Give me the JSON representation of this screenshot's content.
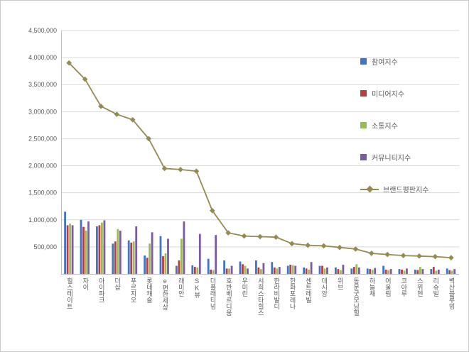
{
  "chart_data": {
    "type": "bar+line",
    "title": "",
    "legend_position": "right-overlay",
    "grid": true,
    "ylim": [
      0,
      4500000
    ],
    "y_ticks": [
      500000,
      1000000,
      1500000,
      2000000,
      2500000,
      3000000,
      3500000,
      4000000,
      4500000
    ],
    "y_tick_labels": [
      "500,000",
      "1,000,000",
      "1,500,000",
      "2,000,000",
      "2,500,000",
      "3,000,000",
      "3,500,000",
      "4,000,000",
      "4,500,000"
    ],
    "categories": [
      "힐스테이트",
      "자이",
      "아이파크",
      "더샵",
      "푸르지오",
      "롯데캐슬",
      "e편한세상",
      "래미안",
      "SK뷰",
      "더플래티넘",
      "호반베르디움",
      "우미린",
      "서희스타힐스",
      "한라비발디",
      "한화포레나",
      "센트레빌",
      "데시앙",
      "위브",
      "동문굿모닝힐",
      "하늘채",
      "어울림",
      "코아루",
      "스위첸",
      "리슈빌",
      "벽산블루밍"
    ],
    "series": [
      {
        "name": "참여지수",
        "color": "#4472C4",
        "values": [
          1150000,
          1000000,
          880000,
          560000,
          620000,
          340000,
          700000,
          150000,
          160000,
          280000,
          250000,
          230000,
          250000,
          220000,
          150000,
          120000,
          150000,
          120000,
          100000,
          100000,
          150000,
          90000,
          80000,
          90000,
          100000
        ]
      },
      {
        "name": "미디어지수",
        "color": "#BC3C39",
        "values": [
          900000,
          870000,
          900000,
          600000,
          580000,
          300000,
          330000,
          250000,
          130000,
          80000,
          100000,
          180000,
          120000,
          120000,
          170000,
          100000,
          150000,
          90000,
          130000,
          90000,
          80000,
          80000,
          70000,
          130000,
          70000
        ]
      },
      {
        "name": "소통지수",
        "color": "#9BBB59",
        "values": [
          930000,
          800000,
          950000,
          830000,
          600000,
          560000,
          380000,
          650000,
          120000,
          70000,
          100000,
          150000,
          90000,
          100000,
          160000,
          80000,
          100000,
          70000,
          180000,
          80000,
          70000,
          60000,
          130000,
          60000,
          60000
        ]
      },
      {
        "name": "커뮤니티지수",
        "color": "#7B5AA6",
        "values": [
          900000,
          970000,
          990000,
          800000,
          880000,
          770000,
          650000,
          970000,
          740000,
          720000,
          150000,
          100000,
          200000,
          130000,
          150000,
          220000,
          120000,
          170000,
          120000,
          110000,
          90000,
          100000,
          90000,
          80000,
          90000
        ]
      }
    ],
    "line_series": {
      "name": "브랜드평판지수",
      "color": "#948A54",
      "values": [
        3900000,
        3600000,
        3100000,
        2950000,
        2850000,
        2500000,
        1950000,
        1930000,
        1900000,
        1170000,
        760000,
        700000,
        690000,
        680000,
        560000,
        530000,
        520000,
        490000,
        460000,
        380000,
        360000,
        340000,
        330000,
        320000,
        300000
      ]
    },
    "style": {
      "grid_color": "#D9D9D9",
      "axis_color": "#BFBFBF",
      "text_color": "#595959",
      "background": "#FFFFFF",
      "frame_border": "#C9C9C9"
    }
  }
}
